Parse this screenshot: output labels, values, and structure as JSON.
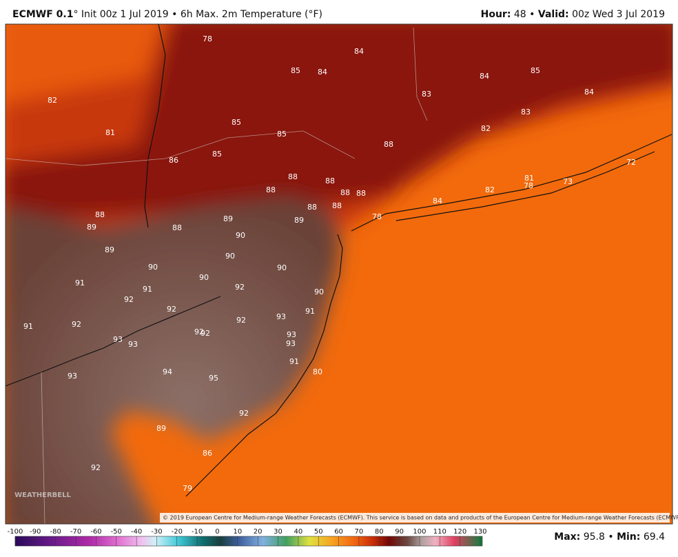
{
  "header": {
    "model": "ECMWF 0.1",
    "description": "° Init 00z 1 Jul 2019 • 6h Max. 2m Temperature (°F)",
    "hour_label": "Hour:",
    "hour": 48,
    "separator": "•",
    "valid_label": "Valid:",
    "valid": "00z Wed 3 Jul 2019"
  },
  "map": {
    "values": [
      78,
      84,
      85,
      84,
      84,
      85,
      84,
      82,
      83,
      83,
      85,
      82,
      81,
      85,
      88,
      85,
      86,
      72,
      88,
      81,
      88,
      78,
      73,
      88,
      88,
      88,
      82,
      84,
      88,
      88,
      88,
      89,
      88,
      89,
      89,
      78,
      90,
      89,
      90,
      90,
      90,
      90,
      91,
      91,
      92,
      90,
      92,
      92,
      91,
      91,
      92,
      92,
      93,
      92,
      92,
      93,
      93,
      93,
      93,
      91,
      80,
      94,
      93,
      95,
      92,
      89,
      86,
      92,
      79
    ],
    "copyright": "© 2019 European Centre for Medium-range Weather Forecasts (ECMWF). This service is based on data and products of the European Centre for Medium-range Weather Forecasts (ECMWF).",
    "logo": "WEATHERBELL"
  },
  "colorbar": {
    "ticks": [
      -100,
      -90,
      -80,
      -70,
      -60,
      -50,
      -40,
      -30,
      -20,
      -10,
      0,
      10,
      20,
      30,
      40,
      50,
      60,
      70,
      80,
      90,
      100,
      110,
      120,
      130
    ]
  },
  "footer": {
    "max_label": "Max:",
    "max": 95.8,
    "separator": "•",
    "min_label": "Min:",
    "min": 69.4
  }
}
